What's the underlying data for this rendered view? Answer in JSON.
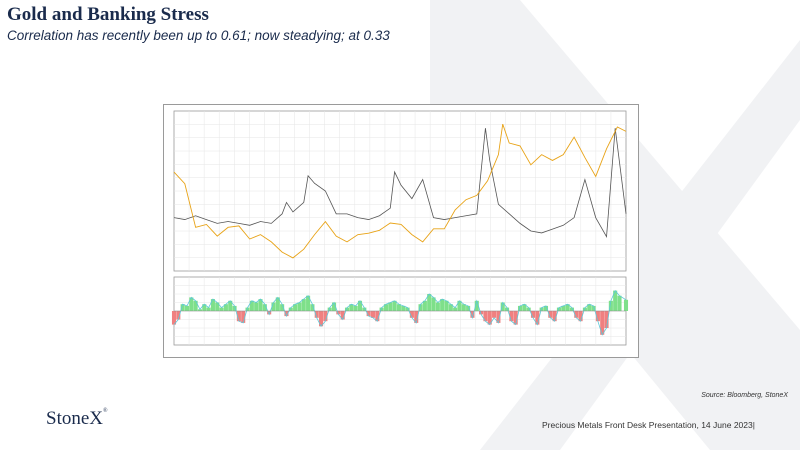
{
  "slide": {
    "title": "Gold and Banking Stress",
    "subtitle": "Correlation has recently been up to 0.61; now steadying; at 0.33",
    "source": "Source:  Bloomberg,  StoneX",
    "logo": "StoneX",
    "logo_mark": "®",
    "footer": "Precious Metals Front Desk Presentation, 14 June 2023|"
  },
  "colors": {
    "gold": "#e8a317",
    "stress": "#555555",
    "corr_pos": "#7ee08a",
    "corr_neg": "#f08080",
    "corr_line": "#5ec8d8",
    "brand": "#1a2b4c"
  },
  "chart_data": [
    {
      "type": "line",
      "series": [
        {
          "key": "gold",
          "x": [
            2013.0,
            2013.25,
            2013.5,
            2013.75,
            2014.0,
            2014.25,
            2014.5,
            2014.75,
            2015.0,
            2015.25,
            2015.5,
            2015.75,
            2016.0,
            2016.25,
            2016.5,
            2016.75,
            2017.0,
            2017.25,
            2017.5,
            2017.75,
            2018.0,
            2018.25,
            2018.5,
            2018.75,
            2019.0,
            2019.25,
            2019.5,
            2019.75,
            2020.0,
            2020.25,
            2020.5,
            2020.6,
            2020.75,
            2021.0,
            2021.25,
            2021.5,
            2021.75,
            2022.0,
            2022.25,
            2022.5,
            2022.75,
            2023.0,
            2023.25,
            2023.45
          ],
          "y": [
            1680,
            1600,
            1300,
            1320,
            1240,
            1300,
            1310,
            1220,
            1250,
            1200,
            1130,
            1090,
            1150,
            1250,
            1340,
            1240,
            1200,
            1250,
            1260,
            1280,
            1330,
            1320,
            1250,
            1200,
            1290,
            1290,
            1420,
            1490,
            1520,
            1620,
            1800,
            2010,
            1880,
            1860,
            1730,
            1800,
            1760,
            1800,
            1920,
            1780,
            1650,
            1840,
            1990,
            1960
          ]
        },
        {
          "key": "stress",
          "x": [
            2013.0,
            2013.25,
            2013.5,
            2013.75,
            2014.0,
            2014.25,
            2014.5,
            2014.75,
            2015.0,
            2015.25,
            2015.5,
            2015.6,
            2015.75,
            2016.0,
            2016.1,
            2016.25,
            2016.5,
            2016.75,
            2017.0,
            2017.25,
            2017.5,
            2017.75,
            2018.0,
            2018.1,
            2018.25,
            2018.5,
            2018.75,
            2019.0,
            2019.25,
            2019.5,
            2019.75,
            2020.0,
            2020.2,
            2020.3,
            2020.5,
            2020.75,
            2021.0,
            2021.25,
            2021.5,
            2021.75,
            2022.0,
            2022.25,
            2022.5,
            2022.75,
            2023.0,
            2023.2,
            2023.45
          ],
          "y": [
            28,
            27,
            29,
            27,
            25,
            26,
            25,
            24,
            26,
            25,
            30,
            36,
            31,
            36,
            50,
            46,
            42,
            30,
            30,
            28,
            27,
            29,
            33,
            52,
            45,
            38,
            48,
            28,
            27,
            28,
            29,
            30,
            75,
            58,
            35,
            30,
            25,
            21,
            20,
            22,
            24,
            28,
            48,
            28,
            18,
            75,
            30
          ]
        }
      ],
      "ylim_left": [
        1000,
        2100
      ],
      "ylim_right": [
        0,
        84
      ]
    },
    {
      "type": "area",
      "series": [
        {
          "key": "correlation",
          "x": [
            2013.0,
            2013.1,
            2013.2,
            2013.3,
            2013.4,
            2013.5,
            2013.6,
            2013.7,
            2013.8,
            2013.9,
            2014.0,
            2014.1,
            2014.2,
            2014.3,
            2014.4,
            2014.5,
            2014.6,
            2014.7,
            2014.8,
            2014.9,
            2015.0,
            2015.1,
            2015.2,
            2015.3,
            2015.4,
            2015.5,
            2015.6,
            2015.7,
            2015.8,
            2015.9,
            2016.0,
            2016.1,
            2016.2,
            2016.3,
            2016.4,
            2016.5,
            2016.6,
            2016.7,
            2016.8,
            2016.9,
            2017.0,
            2017.1,
            2017.2,
            2017.3,
            2017.4,
            2017.5,
            2017.6,
            2017.7,
            2017.8,
            2017.9,
            2018.0,
            2018.1,
            2018.2,
            2018.3,
            2018.4,
            2018.5,
            2018.6,
            2018.7,
            2018.8,
            2018.9,
            2019.0,
            2019.1,
            2019.2,
            2019.3,
            2019.4,
            2019.5,
            2019.6,
            2019.7,
            2019.8,
            2019.9,
            2020.0,
            2020.1,
            2020.2,
            2020.3,
            2020.4,
            2020.5,
            2020.6,
            2020.7,
            2020.8,
            2020.9,
            2021.0,
            2021.1,
            2021.2,
            2021.3,
            2021.4,
            2021.5,
            2021.6,
            2021.7,
            2021.8,
            2021.9,
            2022.0,
            2022.1,
            2022.2,
            2022.3,
            2022.4,
            2022.5,
            2022.6,
            2022.7,
            2022.8,
            2022.9,
            2023.0,
            2023.1,
            2023.2,
            2023.3,
            2023.45
          ],
          "y": [
            -0.4,
            -0.25,
            0.2,
            0.15,
            0.4,
            0.3,
            0.05,
            0.2,
            0.1,
            0.35,
            0.25,
            0.1,
            0.2,
            0.3,
            0.15,
            -0.3,
            -0.35,
            0.1,
            0.3,
            0.25,
            0.35,
            0.2,
            -0.1,
            0.25,
            0.4,
            0.2,
            -0.15,
            0.1,
            0.2,
            0.25,
            0.35,
            0.45,
            0.2,
            -0.2,
            -0.45,
            -0.3,
            0.1,
            0.25,
            -0.1,
            -0.25,
            0.1,
            0.2,
            0.15,
            0.3,
            0.1,
            -0.15,
            -0.2,
            -0.3,
            0.1,
            0.2,
            0.25,
            0.3,
            0.2,
            0.15,
            0.1,
            -0.2,
            -0.35,
            0.2,
            0.3,
            0.5,
            0.4,
            0.25,
            0.35,
            0.3,
            0.2,
            0.1,
            0.3,
            0.2,
            0.15,
            -0.2,
            0.3,
            -0.1,
            -0.3,
            -0.4,
            -0.2,
            -0.35,
            0.25,
            0.1,
            -0.3,
            -0.4,
            0.15,
            0.2,
            0.1,
            -0.2,
            -0.4,
            0.1,
            0.15,
            -0.2,
            -0.3,
            0.1,
            0.15,
            0.2,
            0.1,
            -0.2,
            -0.3,
            0.1,
            0.2,
            0.15,
            -0.3,
            -0.7,
            -0.5,
            0.3,
            0.6,
            0.45,
            0.33
          ]
        }
      ],
      "ylim": [
        -1,
        1
      ]
    }
  ]
}
